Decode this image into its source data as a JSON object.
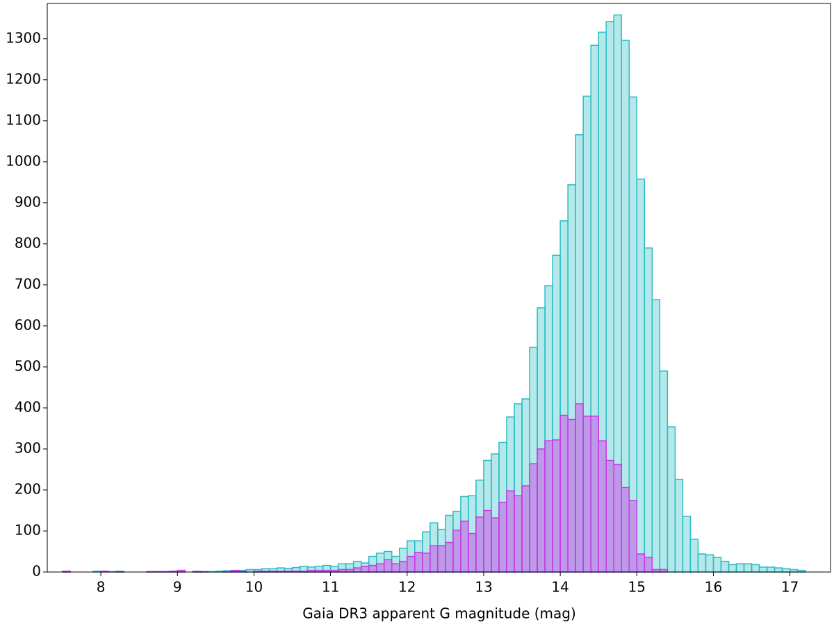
{
  "chart_data": {
    "type": "histogram",
    "x_label": "Gaia DR3 apparent G magnitude (mag)",
    "bins": [
      7.5,
      7.6,
      7.7,
      7.8,
      7.9,
      8.0,
      8.1,
      8.2,
      8.3,
      8.4,
      8.5,
      8.6,
      8.7,
      8.8,
      8.9,
      9.0,
      9.1,
      9.2,
      9.3,
      9.4,
      9.5,
      9.6,
      9.7,
      9.8,
      9.9,
      10.0,
      10.1,
      10.2,
      10.3,
      10.4,
      10.5,
      10.6,
      10.7,
      10.8,
      10.9,
      11.0,
      11.1,
      11.2,
      11.3,
      11.4,
      11.5,
      11.6,
      11.7,
      11.8,
      11.9,
      12.0,
      12.1,
      12.2,
      12.3,
      12.4,
      12.5,
      12.6,
      12.7,
      12.8,
      12.9,
      13.0,
      13.1,
      13.2,
      13.3,
      13.4,
      13.5,
      13.6,
      13.7,
      13.8,
      13.9,
      14.0,
      14.1,
      14.2,
      14.3,
      14.4,
      14.5,
      14.6,
      14.7,
      14.8,
      14.9,
      15.0,
      15.1,
      15.2,
      15.3,
      15.4,
      15.5,
      15.6,
      15.7,
      15.8,
      15.9,
      16.0,
      16.1,
      16.2,
      16.3,
      16.4,
      16.5,
      16.6,
      16.7,
      16.8,
      16.9,
      17.0,
      17.1,
      17.2
    ],
    "series": [
      {
        "color": "#2bbcc4",
        "values": [
          2,
          0,
          0,
          0,
          2,
          0,
          1,
          2,
          0,
          0,
          0,
          1,
          1,
          1,
          2,
          4,
          0,
          2,
          1,
          1,
          2,
          3,
          2,
          4,
          6,
          6,
          8,
          8,
          10,
          9,
          11,
          14,
          12,
          14,
          16,
          14,
          20,
          20,
          26,
          22,
          38,
          46,
          50,
          38,
          58,
          76,
          76,
          98,
          120,
          104,
          138,
          148,
          184,
          186,
          224,
          272,
          288,
          316,
          378,
          410,
          422,
          548,
          644,
          698,
          772,
          856,
          944,
          1066,
          1160,
          1284,
          1316,
          1342,
          1358,
          1296,
          1158,
          958,
          790,
          664,
          490,
          354,
          226,
          136,
          80,
          44,
          42,
          36,
          26,
          18,
          20,
          20,
          18,
          12,
          12,
          10,
          8,
          6,
          4
        ]
      },
      {
        "color": "#c83ae6",
        "values": [
          2,
          0,
          0,
          0,
          0,
          2,
          0,
          1,
          0,
          0,
          0,
          1,
          1,
          1,
          2,
          4,
          0,
          1,
          1,
          0,
          0,
          1,
          4,
          2,
          0,
          2,
          2,
          2,
          2,
          2,
          2,
          2,
          4,
          4,
          4,
          4,
          6,
          6,
          10,
          14,
          16,
          20,
          30,
          20,
          26,
          38,
          48,
          46,
          64,
          64,
          72,
          102,
          124,
          94,
          134,
          150,
          132,
          170,
          198,
          186,
          210,
          264,
          300,
          320,
          322,
          382,
          372,
          410,
          380,
          380,
          320,
          272,
          262,
          206,
          174,
          44,
          36,
          6,
          6,
          0,
          0,
          0,
          0,
          0,
          0,
          0,
          0,
          0,
          0,
          0,
          0,
          0,
          0,
          0,
          0,
          0,
          0
        ]
      }
    ],
    "xlim": [
      7.3,
      17.53
    ],
    "ylim": [
      0,
      1386
    ],
    "xticks": [
      8,
      9,
      10,
      11,
      12,
      13,
      14,
      15,
      16,
      17
    ],
    "yticks": [
      0,
      100,
      200,
      300,
      400,
      500,
      600,
      700,
      800,
      900,
      1000,
      1100,
      1200,
      1300
    ]
  }
}
